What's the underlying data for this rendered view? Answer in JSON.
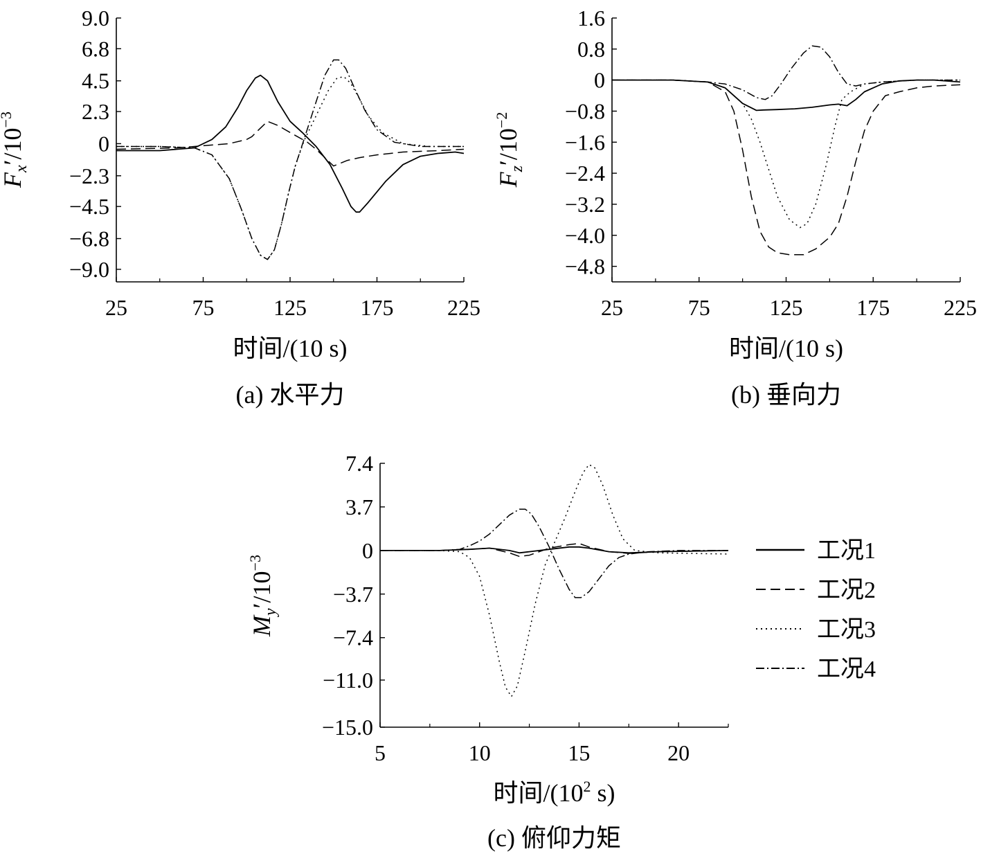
{
  "figure": {
    "legend": {
      "position": "right of panel (c)",
      "entries": [
        {
          "label": "工况1",
          "dash": "solid"
        },
        {
          "label": "工况2",
          "dash": "dashed"
        },
        {
          "label": "工况3",
          "dash": "dotted"
        },
        {
          "label": "工况4",
          "dash": "dashdot"
        }
      ]
    }
  },
  "chart_data": [
    {
      "type": "line",
      "caption": "(a) 水平力",
      "xlabel": "时间/(10 s)",
      "ylabel_main": "F",
      "ylabel_sub": "x",
      "ylabel_rest": "′/10",
      "ylabel_exp": "−3",
      "xlim": [
        25,
        225
      ],
      "ylim": [
        -9.9,
        9.0
      ],
      "xticks": [
        25,
        75,
        125,
        175,
        225
      ],
      "xtick_labels": [
        "25",
        "75",
        "125",
        "175",
        "225"
      ],
      "yticks": [
        9.0,
        6.8,
        4.5,
        2.3,
        0,
        -2.3,
        -4.5,
        -6.8,
        -9.0
      ],
      "ytick_labels": [
        "9.0",
        "6.8",
        "4.5",
        "2.3",
        "0",
        "−2.3",
        "−4.5",
        "−6.8",
        "−9.0"
      ],
      "grid": false,
      "series": [
        {
          "name": "工况1",
          "x": [
            25,
            50,
            70,
            80,
            88,
            95,
            100,
            105,
            108,
            112,
            118,
            125,
            132,
            140,
            148,
            155,
            160,
            163,
            165,
            170,
            180,
            190,
            200,
            210,
            220,
            225
          ],
          "y": [
            -0.5,
            -0.5,
            -0.3,
            0.3,
            1.2,
            2.6,
            3.8,
            4.7,
            4.9,
            4.5,
            3.0,
            1.6,
            0.8,
            -0.2,
            -1.5,
            -3.2,
            -4.5,
            -4.9,
            -4.9,
            -4.2,
            -2.7,
            -1.5,
            -0.9,
            -0.7,
            -0.6,
            -0.7
          ]
        },
        {
          "name": "工况2",
          "x": [
            25,
            60,
            80,
            90,
            100,
            103,
            107,
            112,
            118,
            125,
            135,
            140,
            145,
            150,
            158,
            165,
            175,
            190,
            210,
            225
          ],
          "y": [
            -0.4,
            -0.3,
            -0.1,
            0.0,
            0.3,
            0.5,
            1.0,
            1.6,
            1.3,
            0.8,
            0.1,
            -0.4,
            -1.0,
            -1.6,
            -1.2,
            -1.0,
            -0.8,
            -0.6,
            -0.5,
            -0.4
          ]
        },
        {
          "name": "工况3",
          "x": [
            25,
            50,
            70,
            80,
            90,
            97,
            103,
            108,
            112,
            116,
            120,
            124,
            128,
            133,
            140,
            147,
            152,
            156,
            160,
            165,
            170,
            178,
            190,
            205,
            225
          ],
          "y": [
            -0.2,
            -0.2,
            -0.3,
            -0.8,
            -2.5,
            -4.7,
            -6.8,
            -8.0,
            -8.3,
            -7.6,
            -5.8,
            -3.6,
            -1.6,
            0.2,
            2.0,
            3.8,
            4.7,
            4.8,
            4.3,
            3.2,
            2.0,
            0.8,
            0.0,
            -0.2,
            -0.2
          ]
        },
        {
          "name": "工况4",
          "x": [
            25,
            50,
            70,
            80,
            90,
            97,
            103,
            108,
            112,
            116,
            120,
            124,
            128,
            133,
            140,
            145,
            150,
            153,
            157,
            162,
            168,
            175,
            185,
            200,
            225
          ],
          "y": [
            -0.2,
            -0.2,
            -0.3,
            -0.8,
            -2.5,
            -4.7,
            -6.8,
            -8.0,
            -8.3,
            -7.6,
            -5.8,
            -3.6,
            -1.6,
            0.3,
            3.0,
            4.9,
            6.0,
            6.0,
            5.4,
            4.0,
            2.4,
            1.0,
            0.1,
            -0.2,
            -0.2
          ]
        }
      ]
    },
    {
      "type": "line",
      "caption": "(b) 垂向力",
      "xlabel": "时间/(10 s)",
      "ylabel_main": "F",
      "ylabel_sub": "z",
      "ylabel_rest": "′/10",
      "ylabel_exp": "−2",
      "xlim": [
        25,
        225
      ],
      "ylim": [
        -5.2,
        1.6
      ],
      "xticks": [
        25,
        75,
        125,
        175,
        225
      ],
      "xtick_labels": [
        "25",
        "75",
        "125",
        "175",
        "225"
      ],
      "yticks": [
        1.6,
        0.8,
        0,
        -0.8,
        -1.6,
        -2.4,
        -3.2,
        -4.0,
        -4.8
      ],
      "ytick_labels": [
        "1.6",
        "0.8",
        "0",
        "−0.8",
        "−1.6",
        "−2.4",
        "−3.2",
        "−4.0",
        "−4.8"
      ],
      "grid": false,
      "series": [
        {
          "name": "工况1",
          "x": [
            25,
            60,
            80,
            90,
            100,
            108,
            112,
            120,
            130,
            140,
            150,
            155,
            160,
            165,
            170,
            180,
            190,
            200,
            210,
            225
          ],
          "y": [
            0.0,
            0.0,
            -0.05,
            -0.2,
            -0.6,
            -0.78,
            -0.77,
            -0.76,
            -0.74,
            -0.7,
            -0.64,
            -0.62,
            -0.66,
            -0.5,
            -0.3,
            -0.1,
            -0.02,
            0.0,
            0.0,
            -0.05
          ]
        },
        {
          "name": "工况2",
          "x": [
            25,
            60,
            80,
            90,
            95,
            100,
            105,
            110,
            115,
            120,
            127,
            135,
            142,
            150,
            155,
            160,
            165,
            170,
            175,
            182,
            190,
            200,
            210,
            225
          ],
          "y": [
            0.0,
            0.0,
            -0.05,
            -0.3,
            -0.8,
            -1.8,
            -3.0,
            -3.9,
            -4.3,
            -4.45,
            -4.5,
            -4.5,
            -4.35,
            -4.05,
            -3.7,
            -3.0,
            -2.1,
            -1.3,
            -0.8,
            -0.4,
            -0.3,
            -0.2,
            -0.15,
            -0.12
          ]
        },
        {
          "name": "工况3",
          "x": [
            25,
            60,
            80,
            90,
            100,
            105,
            110,
            115,
            120,
            127,
            133,
            137,
            142,
            148,
            153,
            157,
            162,
            170,
            180,
            200,
            225
          ],
          "y": [
            0.0,
            0.0,
            -0.05,
            -0.2,
            -0.6,
            -1.0,
            -1.6,
            -2.3,
            -3.0,
            -3.6,
            -3.8,
            -3.7,
            -3.2,
            -2.2,
            -1.2,
            -0.5,
            -0.3,
            -0.1,
            -0.05,
            0.0,
            0.0
          ]
        },
        {
          "name": "工况4",
          "x": [
            25,
            60,
            80,
            90,
            100,
            108,
            113,
            117,
            122,
            128,
            135,
            140,
            145,
            150,
            155,
            160,
            165,
            170,
            180,
            200,
            225
          ],
          "y": [
            0.0,
            0.0,
            -0.05,
            -0.1,
            -0.25,
            -0.45,
            -0.5,
            -0.4,
            -0.1,
            0.3,
            0.7,
            0.88,
            0.85,
            0.6,
            0.2,
            -0.1,
            -0.15,
            -0.1,
            -0.05,
            0.0,
            0.0
          ]
        }
      ]
    },
    {
      "type": "line",
      "caption": "(c) 俯仰力矩",
      "xlabel_pre": "时间/(10",
      "xlabel_exp": "2",
      "xlabel_post": " s)",
      "ylabel_main": "M",
      "ylabel_sub": "y",
      "ylabel_rest": "′/10",
      "ylabel_exp": "−3",
      "xlim": [
        5,
        22.5
      ],
      "ylim": [
        -15.0,
        7.4
      ],
      "xticks": [
        5,
        10,
        15,
        20
      ],
      "xtick_labels": [
        "5",
        "10",
        "15",
        "20"
      ],
      "yticks": [
        7.4,
        3.7,
        0,
        -3.7,
        -7.4,
        -11.0,
        -15.0
      ],
      "ytick_labels": [
        "7.4",
        "3.7",
        "0",
        "−3.7",
        "−7.4",
        "−11.0",
        "−15.0"
      ],
      "grid": false,
      "series": [
        {
          "name": "工况1",
          "x": [
            5,
            8,
            9.5,
            10.5,
            11.5,
            12,
            12.5,
            13.5,
            14.5,
            15,
            15.5,
            16.5,
            17.5,
            19,
            22.5
          ],
          "y": [
            0.0,
            0.0,
            0.1,
            0.2,
            0.0,
            -0.2,
            -0.1,
            0.1,
            0.3,
            0.3,
            0.2,
            -0.1,
            -0.2,
            -0.1,
            0.0
          ]
        },
        {
          "name": "工况2",
          "x": [
            5,
            8,
            9.5,
            10.5,
            11.5,
            12,
            12.5,
            13.5,
            14.5,
            15,
            15.5,
            16.5,
            17.5,
            19,
            22.5
          ],
          "y": [
            0.0,
            0.0,
            0.1,
            0.2,
            -0.2,
            -0.5,
            -0.4,
            0.2,
            0.5,
            0.6,
            0.3,
            -0.1,
            -0.25,
            -0.1,
            0.0
          ]
        },
        {
          "name": "工况3",
          "x": [
            5,
            8,
            9,
            9.5,
            10,
            10.5,
            11,
            11.3,
            11.6,
            11.9,
            12.3,
            12.8,
            13.3,
            13.8,
            14.3,
            14.8,
            15.2,
            15.5,
            15.8,
            16.2,
            16.7,
            17.2,
            17.8,
            19,
            22.5
          ],
          "y": [
            0.0,
            0.0,
            -0.1,
            -0.6,
            -2.2,
            -5.5,
            -9.5,
            -11.6,
            -12.4,
            -11.5,
            -8.5,
            -4.5,
            -1.2,
            0.8,
            2.8,
            5.0,
            6.6,
            7.3,
            7.0,
            5.5,
            3.0,
            1.0,
            0.0,
            -0.2,
            -0.3
          ]
        },
        {
          "name": "工况4",
          "x": [
            5,
            8,
            9,
            9.5,
            10,
            10.5,
            11,
            11.5,
            12,
            12.3,
            12.6,
            13,
            13.5,
            14,
            14.5,
            14.8,
            15.1,
            15.5,
            16,
            16.5,
            17,
            17.5,
            18.5,
            20,
            22.5
          ],
          "y": [
            0.0,
            0.0,
            0.1,
            0.4,
            0.8,
            1.4,
            2.2,
            3.0,
            3.5,
            3.5,
            3.1,
            2.0,
            0.3,
            -1.6,
            -3.3,
            -4.0,
            -4.0,
            -3.5,
            -2.4,
            -1.3,
            -0.6,
            -0.3,
            -0.1,
            0.0,
            0.0
          ]
        }
      ]
    }
  ]
}
